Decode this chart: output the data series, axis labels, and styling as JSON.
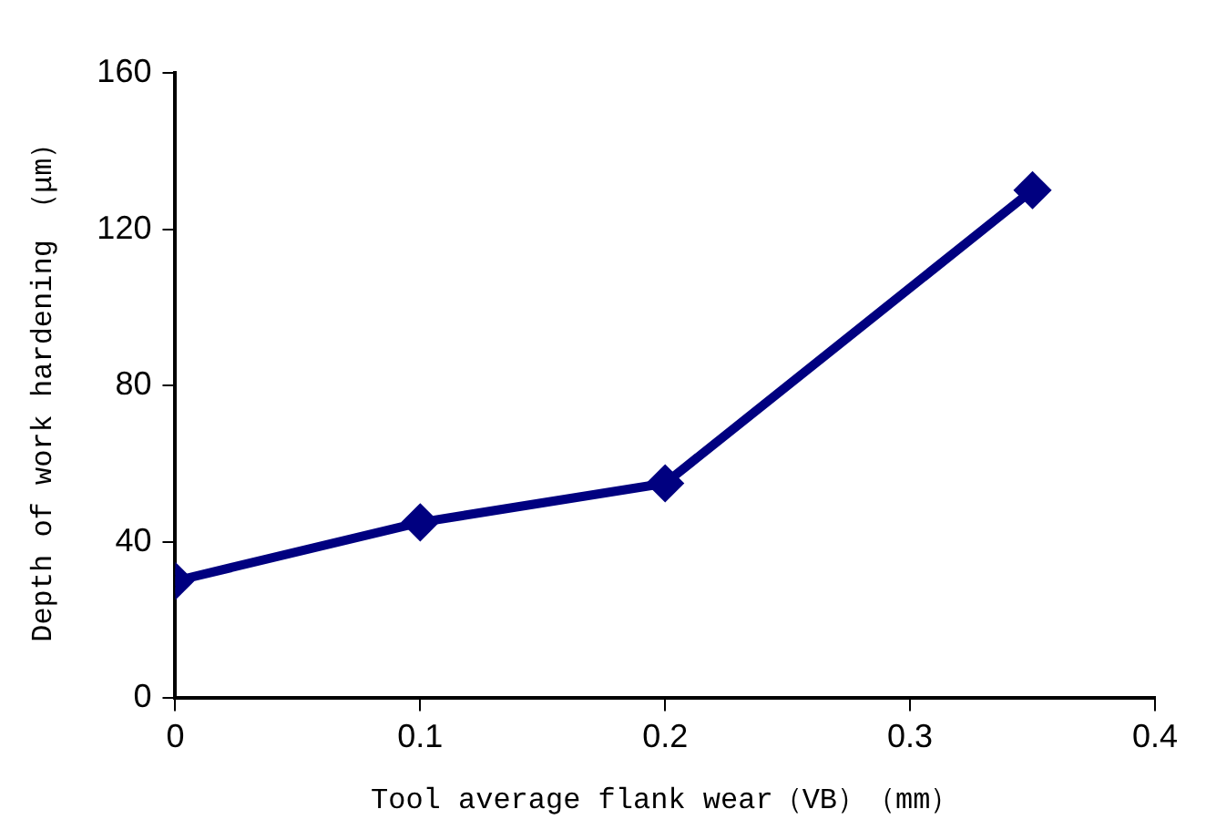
{
  "chart_data": {
    "type": "line",
    "xlabel": "Tool average flank wear（VB）（mm）",
    "ylabel": "Depth of work hardening （μm）",
    "x": [
      0,
      0.1,
      0.2,
      0.35
    ],
    "series": [
      {
        "color": "#000080",
        "values": [
          30,
          45,
          55,
          130
        ]
      }
    ],
    "xlim": [
      0,
      0.4
    ],
    "xticks": [
      0,
      {
        "value": 0.1,
        "label": "0.1"
      },
      {
        "value": 0.2,
        "label": "0.2"
      },
      {
        "value": 0.3,
        "label": "0.3"
      },
      {
        "value": 0.4,
        "label": "0.4"
      }
    ],
    "ylim": [
      0,
      160
    ],
    "yticks": [
      0,
      40,
      80,
      120,
      160
    ],
    "marker": "diamond",
    "line_style": "solid",
    "grid": false,
    "legend": false
  }
}
